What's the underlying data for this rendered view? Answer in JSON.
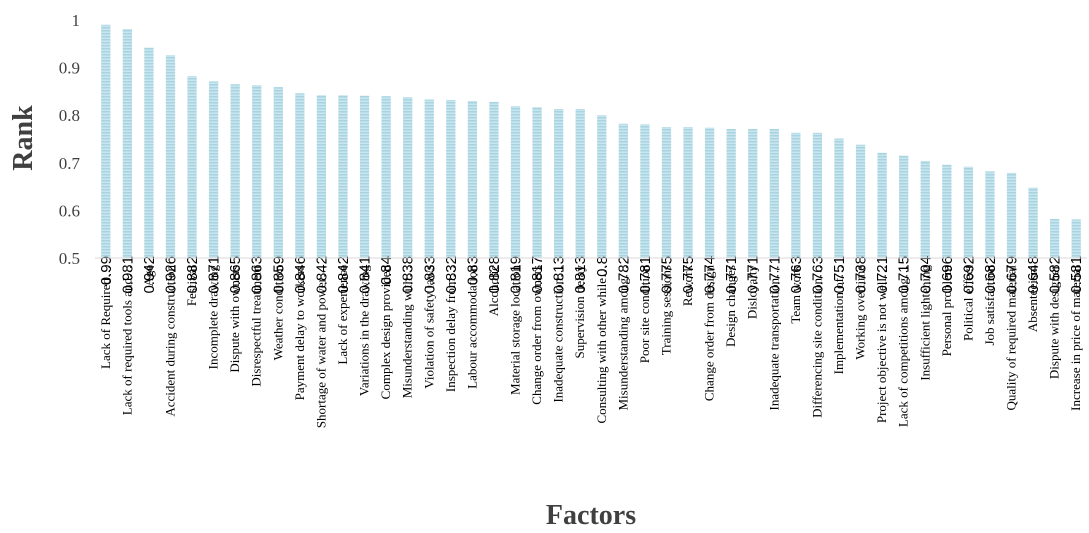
{
  "chart_data": {
    "type": "bar",
    "title": "",
    "xlabel": "Factors",
    "ylabel": "Rank",
    "ylim": [
      0.5,
      1
    ],
    "yticks": [
      "0.5",
      "0.6",
      "0.7",
      "0.8",
      "0.9",
      "1"
    ],
    "grid": false,
    "legend": "none",
    "bar_color": "#a8d4e2",
    "bar_stripe_color": "#c9e5ee",
    "categories": [
      "Lack of Required…",
      "Lack of required tools and…",
      "Age",
      "Accident during construction",
      "Festival",
      "Incomplete drawing",
      "Dispute with owners",
      "Disrespectful treatment",
      "Weather condition",
      "Payment delay to workers",
      "Shortage of water and power…",
      "Lack of experience",
      "Variations in the drawing",
      "Complex design provided",
      "Misunderstanding with…",
      "Violation of safety laws",
      "Inspection delay from…",
      "Labour accommodation",
      "Alcoholic",
      "Material storage location",
      "Change order from owners",
      "Inadequate construction…",
      "Supervision delay",
      "Consulting with other while…",
      "Misunderstanding among…",
      "Poor site condition",
      "Training sessions",
      "Rework",
      "Change order from design",
      "Design changes",
      "Disloyalty",
      "Inadequate transportation…",
      "Team work",
      "Differencing site condition…",
      "Implementation of…",
      "Working overtime",
      "Project objective is not well…",
      "Lack of competitions among…",
      "Insufficient lightening",
      "Personal problem",
      "Political effect",
      "Job satisfaction",
      "Quality of required material",
      "Absenteeism",
      "Dispute with designer",
      "Increase in price of material"
    ],
    "values": [
      0.99,
      0.981,
      0.942,
      0.926,
      0.882,
      0.871,
      0.865,
      0.863,
      0.859,
      0.846,
      0.842,
      0.842,
      0.841,
      0.84,
      0.838,
      0.833,
      0.832,
      0.83,
      0.828,
      0.819,
      0.817,
      0.813,
      0.813,
      0.8,
      0.782,
      0.781,
      0.775,
      0.775,
      0.774,
      0.771,
      0.771,
      0.771,
      0.763,
      0.763,
      0.751,
      0.738,
      0.721,
      0.715,
      0.704,
      0.696,
      0.692,
      0.682,
      0.679,
      0.648,
      0.582,
      0.581
    ],
    "data_labels": [
      "0.99",
      "0.981",
      "0.942",
      "0.926",
      "0.882",
      "0.871",
      "0.865",
      "0.863",
      "0.859",
      "0.846",
      "0.842",
      "0.842",
      "0.841",
      "0.84",
      "0.838",
      "0.833",
      "0.832",
      "0.83",
      "0.828",
      "0.819",
      "0.817",
      "0.813",
      "0.813",
      "0.8",
      "0.782",
      "0.781",
      "0.775",
      "0.775",
      "0.774",
      "0.771",
      "0.771",
      "0.771",
      "0.763",
      "0.763",
      "0.751",
      "0.738",
      "0.721",
      "0.715",
      "0.704",
      "0.696",
      "0.692",
      "0.682",
      "0.679",
      "0.648",
      "0.582",
      "0.581"
    ]
  }
}
